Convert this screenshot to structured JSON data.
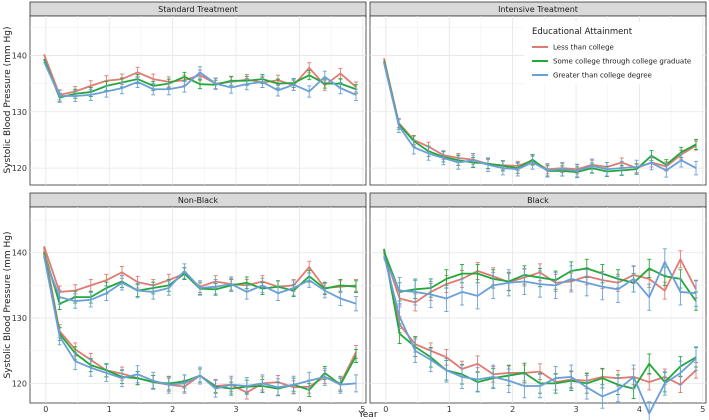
{
  "chart_data": {
    "type": "line",
    "ylabel": "Systolic Blood Pressure (mm Hg)",
    "xlabel": "Year",
    "xlim": [
      -0.25,
      5.05
    ],
    "ylim": [
      117,
      147
    ],
    "x_ticks": [
      0,
      1,
      2,
      3,
      4,
      5
    ],
    "y_ticks": [
      120,
      130,
      140
    ],
    "legend": {
      "title": "Educational Attainment",
      "position": "top-right of Intensive Treatment panel",
      "entries": [
        {
          "name": "Less than college",
          "color": "#e07b73"
        },
        {
          "name": "Some college through college graduate",
          "color": "#22a83a"
        },
        {
          "name": "Greater than college degree",
          "color": "#6a9fd8"
        }
      ]
    },
    "x": [
      0,
      0.5,
      0.75,
      1,
      1.25,
      1.5,
      1.75,
      2,
      2.25,
      2.5,
      2.75,
      3,
      3.25,
      3.5,
      3.75,
      4,
      4.25,
      4.5,
      4.75
    ],
    "panels": [
      {
        "title": "Standard Treatment",
        "series": [
          {
            "name": "Less than college",
            "values": [
              140.2,
              133.0,
              133.6,
              134.6,
              135.5,
              135.8,
              137.0,
              135.8,
              135.3,
              135.6,
              136.5,
              135.0,
              135.3,
              135.7,
              135.2,
              135.6,
              134.7,
              137.8,
              134.7,
              136.8,
              134.4
            ],
            "err": 0.9,
            "x": [
              0,
              0.25,
              0.5,
              0.75,
              1,
              1.25,
              1.5,
              1.75,
              2,
              2.25,
              2.5,
              2.75,
              3,
              3.25,
              3.5,
              3.75,
              4,
              4.25,
              4.5,
              4.75,
              5
            ]
          },
          {
            "name": "Some college through college graduate",
            "values": [
              139.4,
              132.5,
              133.2,
              133.5,
              134.6,
              135.2,
              135.8,
              134.6,
              135.0,
              136.2,
              134.9,
              134.8,
              135.5,
              135.5,
              135.8,
              135.0,
              135.1,
              136.5,
              135.0,
              135.0,
              134.0
            ],
            "err": 0.8,
            "x": [
              0,
              0.25,
              0.5,
              0.75,
              1,
              1.25,
              1.5,
              1.75,
              2,
              2.25,
              2.5,
              2.75,
              3,
              3.25,
              3.5,
              3.75,
              4,
              4.25,
              4.5,
              4.75,
              5
            ]
          },
          {
            "name": "Greater than college degree",
            "values": [
              138.9,
              132.8,
              132.8,
              133.0,
              133.6,
              134.2,
              135.3,
              134.0,
              134.0,
              134.5,
              137.0,
              135.0,
              134.3,
              134.9,
              135.3,
              133.8,
              134.8,
              133.6,
              136.2,
              134.2,
              133.0
            ],
            "err": 1.0,
            "x": [
              0,
              0.25,
              0.5,
              0.75,
              1,
              1.25,
              1.5,
              1.75,
              2,
              2.25,
              2.5,
              2.75,
              3,
              3.25,
              3.5,
              3.75,
              4,
              4.25,
              4.5,
              4.75,
              5
            ]
          }
        ]
      },
      {
        "title": "Intensive Treatment",
        "series": [
          {
            "name": "Less than college",
            "values": [
              139.5,
              128.0,
              125.0,
              123.8,
              122.3,
              121.8,
              121.5,
              120.7,
              120.5,
              120.4,
              121.3,
              119.8,
              120.0,
              119.8,
              120.6,
              120.2,
              121.0,
              120.0,
              121.0,
              120.3,
              122.4,
              124.0
            ],
            "err": 0.8,
            "x": [
              0,
              0.25,
              0.5,
              0.75,
              1,
              1.25,
              1.5,
              1.75,
              2,
              2.25,
              2.5,
              2.75,
              3,
              3.25,
              3.5,
              3.75,
              4,
              4.25,
              4.5,
              4.75,
              5,
              5.25
            ]
          },
          {
            "name": "Some college through college graduate",
            "values": [
              139.0,
              127.8,
              124.8,
              123.0,
              122.0,
              121.4,
              121.0,
              120.8,
              120.4,
              120.0,
              121.5,
              119.5,
              119.5,
              119.3,
              120.0,
              119.4,
              119.6,
              119.8,
              122.2,
              120.6,
              122.8,
              124.2
            ],
            "err": 0.9,
            "x": [
              0,
              0.25,
              0.5,
              0.75,
              1,
              1.25,
              1.5,
              1.75,
              2,
              2.25,
              2.5,
              2.75,
              3,
              3.25,
              3.5,
              3.75,
              4,
              4.25,
              4.5,
              4.75,
              5,
              5.25
            ]
          },
          {
            "name": "Greater than college degree",
            "values": [
              138.7,
              127.5,
              123.7,
              122.6,
              121.8,
              121.0,
              121.4,
              120.6,
              120.0,
              119.8,
              121.0,
              119.6,
              119.8,
              119.5,
              120.4,
              119.8,
              120.0,
              120.2,
              120.9,
              119.6,
              121.4,
              120.0
            ],
            "err": 1.2,
            "x": [
              0,
              0.25,
              0.5,
              0.75,
              1,
              1.25,
              1.5,
              1.75,
              2,
              2.25,
              2.5,
              2.75,
              3,
              3.25,
              3.5,
              3.75,
              4,
              4.25,
              4.5,
              4.75,
              5,
              5.25
            ]
          }
        ]
      },
      {
        "title": "Non-Black",
        "series": [
          {
            "name": "Less than college (standard)",
            "values": [
              141.0,
              134.0,
              134.2,
              135.0,
              135.8,
              137.0,
              135.5,
              135.0,
              135.8,
              136.8,
              134.8,
              135.6,
              135.2,
              135.0,
              135.6,
              134.8,
              135.0,
              137.8,
              134.6,
              134.8,
              135.0
            ],
            "err": 0.9,
            "x": [
              0,
              0.25,
              0.5,
              0.75,
              1,
              1.25,
              1.5,
              1.75,
              2,
              2.25,
              2.5,
              2.75,
              3,
              3.25,
              3.5,
              3.75,
              4,
              4.25,
              4.5,
              4.75,
              5
            ]
          },
          {
            "name": "Some college through college graduate (standard)",
            "values": [
              140.2,
              132.2,
              133.2,
              133.2,
              134.6,
              135.6,
              134.2,
              134.6,
              135.0,
              136.8,
              134.5,
              134.4,
              135.0,
              135.4,
              134.5,
              134.8,
              134.2,
              136.4,
              134.5,
              135.0,
              134.8
            ],
            "err": 0.9,
            "x": [
              0,
              0.25,
              0.5,
              0.75,
              1,
              1.25,
              1.5,
              1.75,
              2,
              2.25,
              2.5,
              2.75,
              3,
              3.25,
              3.5,
              3.75,
              4,
              4.25,
              4.5,
              4.75,
              5
            ]
          },
          {
            "name": "Greater than college degree (standard)",
            "values": [
              139.4,
              133.2,
              132.6,
              132.8,
              133.8,
              135.4,
              134.2,
              134.0,
              134.6,
              137.2,
              134.6,
              134.8,
              135.2,
              134.0,
              135.0,
              133.8,
              134.6,
              135.8,
              134.2,
              133.0,
              132.2
            ],
            "err": 1.1,
            "x": [
              0,
              0.25,
              0.5,
              0.75,
              1,
              1.25,
              1.5,
              1.75,
              2,
              2.25,
              2.5,
              2.75,
              3,
              3.25,
              3.5,
              3.75,
              4,
              4.25,
              4.5,
              4.75,
              5
            ]
          },
          {
            "name": "Less than college (intensive)",
            "values": [
              140.8,
              128.0,
              125.2,
              123.6,
              122.0,
              121.5,
              120.8,
              120.2,
              119.8,
              119.5,
              121.2,
              119.6,
              119.8,
              118.6,
              120.0,
              120.2,
              119.4,
              119.5,
              121.0,
              120.0,
              124.8
            ],
            "err": 1.0,
            "x": [
              0,
              0.25,
              0.5,
              0.75,
              1,
              1.25,
              1.5,
              1.75,
              2,
              2.25,
              2.5,
              2.75,
              3,
              3.25,
              3.5,
              3.75,
              4,
              4.25,
              4.5,
              4.75,
              5
            ]
          },
          {
            "name": "Some college through college graduate (intensive)",
            "values": [
              140.0,
              127.6,
              124.6,
              122.8,
              122.0,
              121.0,
              120.8,
              120.2,
              120.0,
              120.3,
              121.2,
              119.5,
              119.2,
              119.5,
              119.6,
              119.2,
              119.8,
              119.0,
              121.6,
              119.8,
              124.2
            ],
            "err": 1.0,
            "x": [
              0,
              0.25,
              0.5,
              0.75,
              1,
              1.25,
              1.5,
              1.75,
              2,
              2.25,
              2.5,
              2.75,
              3,
              3.25,
              3.5,
              3.75,
              4,
              4.25,
              4.5,
              4.75,
              5
            ]
          },
          {
            "name": "Greater than college degree (intensive)",
            "values": [
              139.6,
              127.2,
              123.4,
              122.4,
              121.6,
              120.8,
              121.4,
              120.4,
              119.8,
              120.0,
              121.2,
              119.2,
              119.8,
              119.6,
              120.0,
              119.4,
              119.8,
              120.4,
              121.0,
              119.8,
              120.0
            ],
            "err": 1.3,
            "x": [
              0,
              0.25,
              0.5,
              0.75,
              1,
              1.25,
              1.5,
              1.75,
              2,
              2.25,
              2.5,
              2.75,
              3,
              3.25,
              3.5,
              3.75,
              4,
              4.25,
              4.5,
              4.75,
              5
            ]
          }
        ]
      },
      {
        "title": "Black",
        "series": [
          {
            "name": "Less than college (standard)",
            "values": [
              140.0,
              133.0,
              132.4,
              134.0,
              135.2,
              136.0,
              137.2,
              136.4,
              135.5,
              136.2,
              137.0,
              135.4,
              135.6,
              136.4,
              135.8,
              135.4,
              136.6,
              136.0,
              134.2,
              139.0,
              134.4
            ],
            "err": 1.3,
            "x": [
              0,
              0.25,
              0.5,
              0.75,
              1,
              1.25,
              1.5,
              1.75,
              2,
              2.25,
              2.5,
              2.75,
              3,
              3.25,
              3.5,
              3.75,
              4,
              4.25,
              4.5,
              4.75,
              5
            ]
          },
          {
            "name": "Some college through college graduate (standard)",
            "values": [
              140.2,
              134.0,
              134.4,
              134.6,
              136.0,
              136.8,
              136.8,
              136.0,
              135.6,
              136.6,
              136.2,
              135.8,
              137.2,
              137.6,
              136.8,
              136.0,
              135.4,
              137.6,
              136.4,
              136.0,
              132.6
            ],
            "err": 1.4,
            "x": [
              0,
              0.25,
              0.5,
              0.75,
              1,
              1.25,
              1.5,
              1.75,
              2,
              2.25,
              2.5,
              2.75,
              3,
              3.25,
              3.5,
              3.75,
              4,
              4.25,
              4.5,
              4.75,
              5
            ]
          },
          {
            "name": "Greater than college degree (standard)",
            "values": [
              139.2,
              134.2,
              134.0,
              133.6,
              133.0,
              134.0,
              133.4,
              135.0,
              135.4,
              135.6,
              135.2,
              135.0,
              136.0,
              135.4,
              134.8,
              134.4,
              136.0,
              133.2,
              138.6,
              134.0,
              133.8
            ],
            "err": 2.0,
            "x": [
              0,
              0.25,
              0.5,
              0.75,
              1,
              1.25,
              1.5,
              1.75,
              2,
              2.25,
              2.5,
              2.75,
              3,
              3.25,
              3.5,
              3.75,
              4,
              4.25,
              4.5,
              4.75,
              5
            ]
          },
          {
            "name": "Less than college (intensive)",
            "values": [
              140.4,
              129.0,
              126.0,
              125.0,
              124.0,
              122.2,
              123.0,
              121.4,
              121.6,
              121.6,
              121.8,
              120.2,
              120.6,
              120.4,
              121.0,
              120.8,
              121.0,
              120.2,
              121.0,
              119.8,
              122.0
            ],
            "err": 1.2,
            "x": [
              0,
              0.25,
              0.5,
              0.75,
              1,
              1.25,
              1.5,
              1.75,
              2,
              2.25,
              2.5,
              2.75,
              3,
              3.25,
              3.5,
              3.75,
              4,
              4.25,
              4.5,
              4.75,
              5
            ]
          },
          {
            "name": "Some college through college graduate (intensive)",
            "values": [
              140.6,
              127.6,
              125.6,
              124.0,
              122.0,
              121.4,
              120.2,
              120.8,
              121.2,
              121.6,
              120.0,
              120.0,
              120.4,
              120.0,
              120.8,
              119.8,
              119.2,
              123.0,
              120.2,
              122.6,
              124.0
            ],
            "err": 1.5,
            "x": [
              0,
              0.25,
              0.5,
              0.75,
              1,
              1.25,
              1.5,
              1.75,
              2,
              2.25,
              2.5,
              2.75,
              3,
              3.25,
              3.5,
              3.75,
              4,
              4.25,
              4.5,
              4.75,
              5
            ]
          },
          {
            "name": "Greater than college degree (intensive)",
            "values": [
              139.6,
              130.2,
              125.0,
              123.6,
              122.0,
              121.0,
              120.6,
              121.0,
              120.4,
              119.6,
              119.6,
              120.8,
              121.0,
              119.4,
              118.0,
              119.0,
              121.0,
              115.4,
              120.0,
              121.6,
              123.8
            ],
            "err": 1.8,
            "x": [
              0,
              0.25,
              0.5,
              0.75,
              1,
              1.25,
              1.5,
              1.75,
              2,
              2.25,
              2.5,
              2.75,
              3,
              3.25,
              3.5,
              3.75,
              4,
              4.25,
              4.5,
              4.75,
              5
            ]
          }
        ]
      }
    ]
  }
}
